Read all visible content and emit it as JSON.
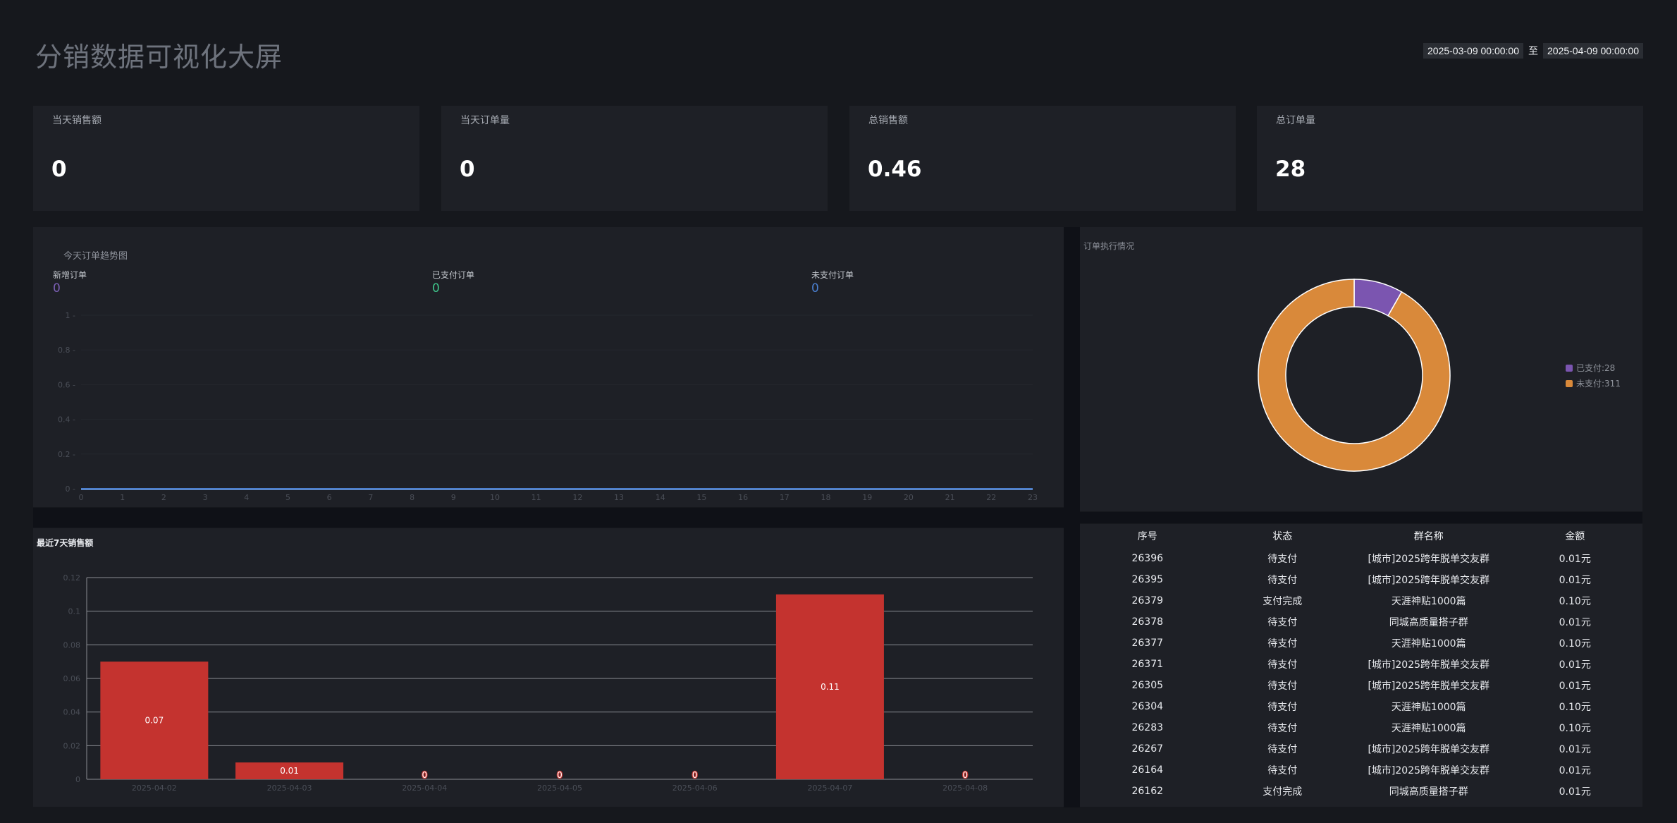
{
  "page": {
    "title": "分销数据可视化大屏",
    "date_start": "2025-03-09 00:00:00",
    "date_separator": "至",
    "date_end": "2025-04-09 00:00:00"
  },
  "kpis": [
    {
      "label": "当天销售额",
      "value": "0"
    },
    {
      "label": "当天订单量",
      "value": "0"
    },
    {
      "label": "总销售额",
      "value": "0.46"
    },
    {
      "label": "总订单量",
      "value": "28"
    }
  ],
  "trend": {
    "title": "今天订单趋势图",
    "legend": [
      {
        "label": "新增订单",
        "value": "0",
        "color": "#7b5fb5"
      },
      {
        "label": "已支付订单",
        "value": "0",
        "color": "#3fc48a"
      },
      {
        "label": "未支付订单",
        "value": "0",
        "color": "#4a7fd0"
      }
    ],
    "chart_data": {
      "type": "line",
      "x": [
        "0",
        "1",
        "2",
        "3",
        "4",
        "5",
        "6",
        "7",
        "8",
        "9",
        "10",
        "11",
        "12",
        "13",
        "14",
        "15",
        "16",
        "17",
        "18",
        "19",
        "20",
        "21",
        "22",
        "23"
      ],
      "y_ticks": [
        "0",
        "0.2",
        "0.4",
        "0.6",
        "0.8",
        "1"
      ],
      "ylim": [
        0,
        1
      ],
      "series": [
        {
          "name": "新增订单",
          "values": [
            0,
            0,
            0,
            0,
            0,
            0,
            0,
            0,
            0,
            0,
            0,
            0,
            0,
            0,
            0,
            0,
            0,
            0,
            0,
            0,
            0,
            0,
            0,
            0
          ]
        },
        {
          "name": "已支付订单",
          "values": [
            0,
            0,
            0,
            0,
            0,
            0,
            0,
            0,
            0,
            0,
            0,
            0,
            0,
            0,
            0,
            0,
            0,
            0,
            0,
            0,
            0,
            0,
            0,
            0
          ]
        },
        {
          "name": "未支付订单",
          "values": [
            0,
            0,
            0,
            0,
            0,
            0,
            0,
            0,
            0,
            0,
            0,
            0,
            0,
            0,
            0,
            0,
            0,
            0,
            0,
            0,
            0,
            0,
            0,
            0
          ]
        }
      ]
    }
  },
  "donut": {
    "title": "订单执行情况",
    "chart_data": {
      "type": "pie",
      "slices": [
        {
          "name": "已支付",
          "value": 28,
          "label": "已支付:28",
          "color": "#7b55b0"
        },
        {
          "name": "未支付",
          "value": 311,
          "label": "未支付:311",
          "color": "#d9893a"
        }
      ]
    }
  },
  "sales7": {
    "title": "最近7天销售额",
    "bar_color": "#c4332f",
    "chart_data": {
      "type": "bar",
      "categories": [
        "2025-04-02",
        "2025-04-03",
        "2025-04-04",
        "2025-04-05",
        "2025-04-06",
        "2025-04-07",
        "2025-04-08"
      ],
      "values": [
        0.07,
        0.01,
        0,
        0,
        0,
        0.11,
        0
      ],
      "value_labels": [
        "0.07",
        "0.01",
        "0",
        "0",
        "0",
        "0.11",
        "0"
      ],
      "y_ticks": [
        "0",
        "0.02",
        "0.04",
        "0.06",
        "0.08",
        "0.1",
        "0.12"
      ],
      "ylim": [
        0,
        0.12
      ]
    }
  },
  "orders": {
    "columns": [
      "序号",
      "状态",
      "群名称",
      "金额"
    ],
    "rows": [
      [
        "26396",
        "待支付",
        "[城市]2025跨年脱单交友群",
        "0.01元"
      ],
      [
        "26395",
        "待支付",
        "[城市]2025跨年脱单交友群",
        "0.01元"
      ],
      [
        "26379",
        "支付完成",
        "天涯神贴1000篇",
        "0.10元"
      ],
      [
        "26378",
        "待支付",
        "同城高质量搭子群",
        "0.01元"
      ],
      [
        "26377",
        "待支付",
        "天涯神贴1000篇",
        "0.10元"
      ],
      [
        "26371",
        "待支付",
        "[城市]2025跨年脱单交友群",
        "0.01元"
      ],
      [
        "26305",
        "待支付",
        "[城市]2025跨年脱单交友群",
        "0.01元"
      ],
      [
        "26304",
        "待支付",
        "天涯神贴1000篇",
        "0.10元"
      ],
      [
        "26283",
        "待支付",
        "天涯神贴1000篇",
        "0.10元"
      ],
      [
        "26267",
        "待支付",
        "[城市]2025跨年脱单交友群",
        "0.01元"
      ],
      [
        "26164",
        "待支付",
        "[城市]2025跨年脱单交友群",
        "0.01元"
      ],
      [
        "26162",
        "支付完成",
        "同城高质量搭子群",
        "0.01元"
      ]
    ]
  }
}
